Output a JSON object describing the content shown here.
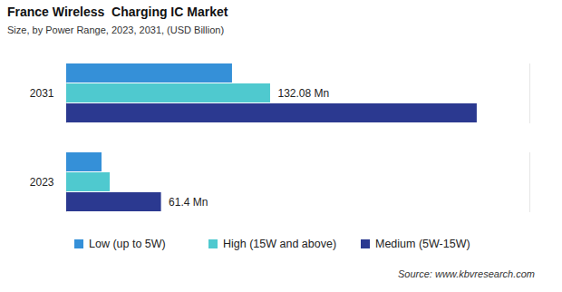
{
  "chart_data": {
    "type": "bar",
    "orientation": "horizontal",
    "title": "France Wireless  Charging IC Market",
    "subtitle": "Size, by Power Range, 2023, 2031, (USD Billion)",
    "source": "Source: www.kbvresearch.com",
    "categories": [
      "2031",
      "2023"
    ],
    "series": [
      {
        "name": "Low (up to 5W)",
        "color": "#3590d8",
        "values": [
          107.4,
          22.9
        ],
        "value_labels": [
          null,
          null
        ]
      },
      {
        "name": "High (15W and above)",
        "color": "#4fc9cf",
        "values": [
          132.08,
          28.2
        ],
        "value_labels": [
          "132.08 Mn",
          null
        ]
      },
      {
        "name": "Medium (5W-15W)",
        "color": "#2b3990",
        "values": [
          265.9,
          61.4
        ],
        "value_labels": [
          null,
          "61.4 Mn"
        ]
      }
    ],
    "xlim": [
      0,
      300
    ],
    "tick_labels": "y",
    "grid": false,
    "legend": "bottom",
    "data_labels": true
  }
}
